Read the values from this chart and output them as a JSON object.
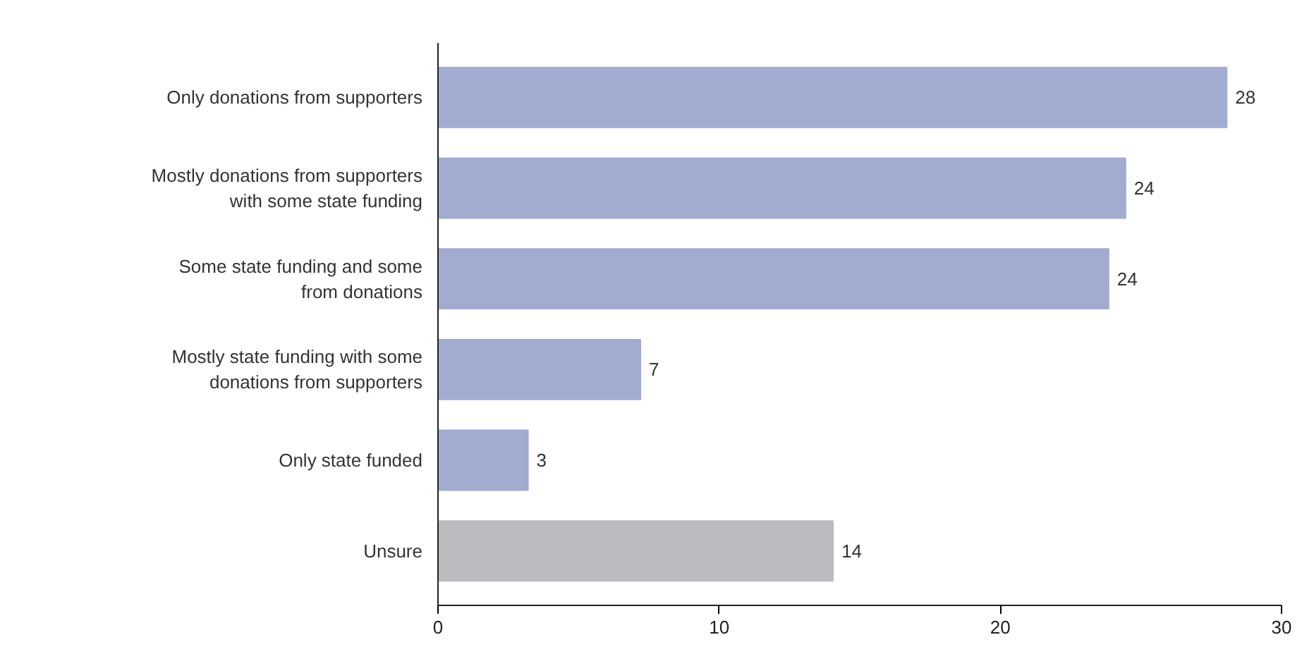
{
  "chart_data": {
    "type": "bar",
    "orientation": "horizontal",
    "categories": [
      "Only donations from supporters",
      "Mostly donations from supporters\nwith some state funding",
      "Some state funding and some\nfrom donations",
      "Mostly state funding with some\ndonations from supporters",
      "Only state funded",
      "Unsure"
    ],
    "values": [
      28.05,
      24.45,
      23.85,
      7.2,
      3.2,
      14.05
    ],
    "value_labels": [
      "28",
      "24",
      "24",
      "7",
      "3",
      "14"
    ],
    "colors": [
      "#a2abd0",
      "#a2abd0",
      "#a2abd0",
      "#a2abd0",
      "#a2abd0",
      "#bbbcc0"
    ],
    "xlim": [
      0,
      30
    ],
    "xticks": [
      0,
      10,
      20,
      30
    ],
    "grid": false
  }
}
